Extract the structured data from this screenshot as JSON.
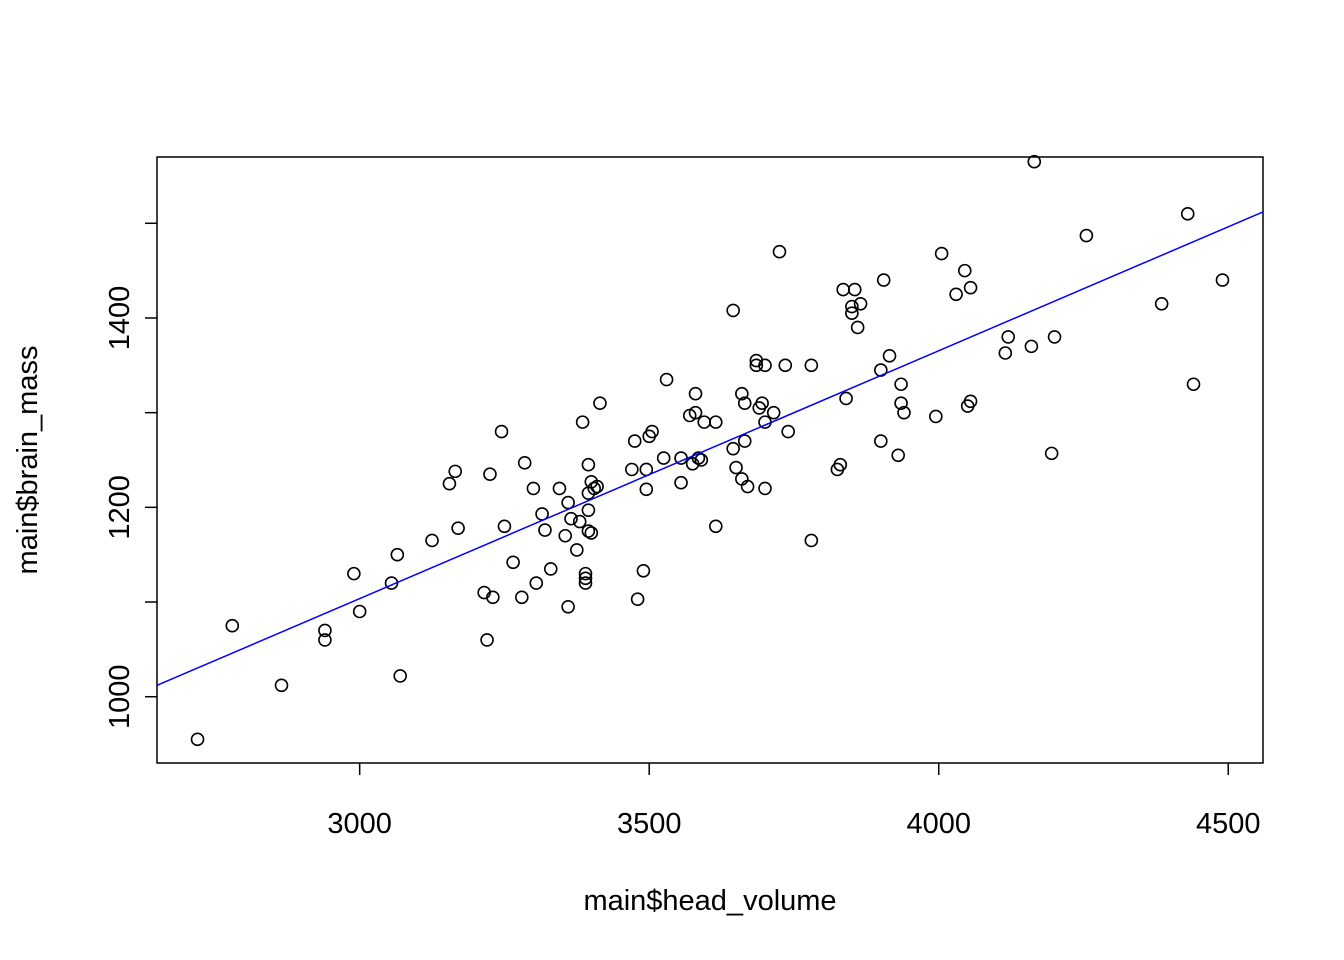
{
  "chart_data": {
    "type": "scatter",
    "title": "",
    "xlabel": "main$head_volume",
    "ylabel": "main$brain_mass",
    "xlim": [
      2650,
      4560
    ],
    "ylim": [
      930,
      1570
    ],
    "xticks": [
      3000,
      3500,
      4000,
      4500
    ],
    "yticks": [
      1000,
      1200,
      1400
    ],
    "xtick_labels": [
      "3000",
      "3500",
      "4000",
      "4500"
    ],
    "ytick_labels": [
      "1000",
      "1200",
      "1400"
    ],
    "extra_y_ticks": [
      1100,
      1300,
      1500
    ],
    "grid": false,
    "colors": {
      "points": "#000000",
      "fit_line": "#0000ff",
      "frame": "#000000"
    },
    "fit_line": {
      "x": [
        2650,
        4560
      ],
      "y": [
        1012,
        1512
      ]
    },
    "points": [
      [
        2720,
        955
      ],
      [
        2780,
        1075
      ],
      [
        2865,
        1012
      ],
      [
        2940,
        1070
      ],
      [
        2940,
        1060
      ],
      [
        2990,
        1130
      ],
      [
        3000,
        1090
      ],
      [
        3055,
        1120
      ],
      [
        3065,
        1150
      ],
      [
        3070,
        1022
      ],
      [
        3125,
        1165
      ],
      [
        3155,
        1225
      ],
      [
        3165,
        1238
      ],
      [
        3170,
        1178
      ],
      [
        3215,
        1110
      ],
      [
        3220,
        1060
      ],
      [
        3225,
        1235
      ],
      [
        3230,
        1105
      ],
      [
        3245,
        1280
      ],
      [
        3250,
        1180
      ],
      [
        3265,
        1142
      ],
      [
        3280,
        1105
      ],
      [
        3285,
        1247
      ],
      [
        3300,
        1220
      ],
      [
        3305,
        1120
      ],
      [
        3315,
        1193
      ],
      [
        3320,
        1176
      ],
      [
        3330,
        1135
      ],
      [
        3345,
        1220
      ],
      [
        3355,
        1170
      ],
      [
        3360,
        1205
      ],
      [
        3365,
        1188
      ],
      [
        3360,
        1095
      ],
      [
        3375,
        1155
      ],
      [
        3380,
        1185
      ],
      [
        3385,
        1290
      ],
      [
        3390,
        1130
      ],
      [
        3390,
        1125
      ],
      [
        3390,
        1120
      ],
      [
        3395,
        1245
      ],
      [
        3395,
        1175
      ],
      [
        3395,
        1215
      ],
      [
        3395,
        1197
      ],
      [
        3400,
        1173
      ],
      [
        3400,
        1227
      ],
      [
        3405,
        1220
      ],
      [
        3410,
        1222
      ],
      [
        3415,
        1310
      ],
      [
        3470,
        1240
      ],
      [
        3475,
        1270
      ],
      [
        3480,
        1103
      ],
      [
        3490,
        1133
      ],
      [
        3495,
        1240
      ],
      [
        3495,
        1219
      ],
      [
        3500,
        1275
      ],
      [
        3505,
        1280
      ],
      [
        3525,
        1252
      ],
      [
        3530,
        1335
      ],
      [
        3555,
        1252
      ],
      [
        3555,
        1226
      ],
      [
        3570,
        1297
      ],
      [
        3575,
        1246
      ],
      [
        3580,
        1320
      ],
      [
        3580,
        1300
      ],
      [
        3585,
        1252
      ],
      [
        3590,
        1250
      ],
      [
        3595,
        1290
      ],
      [
        3615,
        1180
      ],
      [
        3615,
        1290
      ],
      [
        3645,
        1408
      ],
      [
        3645,
        1262
      ],
      [
        3650,
        1242
      ],
      [
        3660,
        1320
      ],
      [
        3660,
        1230
      ],
      [
        3665,
        1310
      ],
      [
        3665,
        1270
      ],
      [
        3670,
        1222
      ],
      [
        3685,
        1355
      ],
      [
        3685,
        1350
      ],
      [
        3690,
        1305
      ],
      [
        3695,
        1310
      ],
      [
        3700,
        1290
      ],
      [
        3700,
        1350
      ],
      [
        3700,
        1220
      ],
      [
        3715,
        1300
      ],
      [
        3725,
        1470
      ],
      [
        3735,
        1350
      ],
      [
        3740,
        1280
      ],
      [
        3780,
        1165
      ],
      [
        3780,
        1350
      ],
      [
        3825,
        1240
      ],
      [
        3830,
        1245
      ],
      [
        3835,
        1430
      ],
      [
        3840,
        1315
      ],
      [
        3850,
        1412
      ],
      [
        3850,
        1405
      ],
      [
        3855,
        1430
      ],
      [
        3860,
        1390
      ],
      [
        3865,
        1415
      ],
      [
        3900,
        1270
      ],
      [
        3900,
        1345
      ],
      [
        3905,
        1440
      ],
      [
        3915,
        1360
      ],
      [
        3930,
        1255
      ],
      [
        3935,
        1310
      ],
      [
        3935,
        1330
      ],
      [
        3940,
        1300
      ],
      [
        3995,
        1296
      ],
      [
        4005,
        1468
      ],
      [
        4030,
        1425
      ],
      [
        4045,
        1450
      ],
      [
        4050,
        1307
      ],
      [
        4055,
        1312
      ],
      [
        4055,
        1432
      ],
      [
        4115,
        1363
      ],
      [
        4120,
        1380
      ],
      [
        4160,
        1370
      ],
      [
        4165,
        1565
      ],
      [
        4195,
        1257
      ],
      [
        4200,
        1380
      ],
      [
        4255,
        1487
      ],
      [
        4385,
        1415
      ],
      [
        4430,
        1510
      ],
      [
        4440,
        1330
      ],
      [
        4490,
        1440
      ]
    ]
  }
}
